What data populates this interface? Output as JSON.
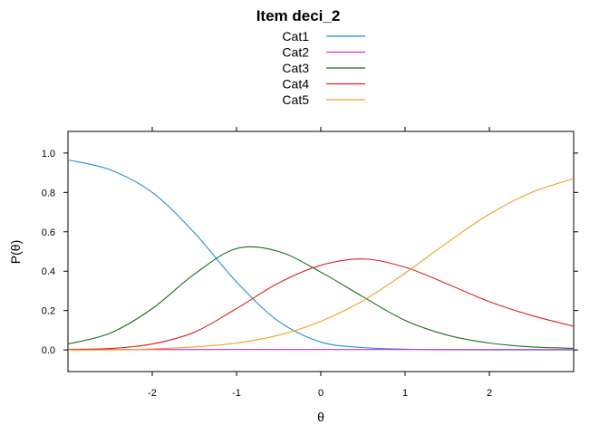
{
  "chart_data": {
    "type": "line",
    "title": "Item deci_2",
    "xlabel": "θ",
    "ylabel": "P(θ)",
    "xlim": [
      -3,
      3
    ],
    "ylim": [
      -0.11,
      1.11
    ],
    "x_ticks": [
      -2,
      -1,
      0,
      1,
      2
    ],
    "x_tick_labels": [
      "-2",
      "-1",
      "0",
      "1",
      "2"
    ],
    "y_ticks": [
      0.0,
      0.2,
      0.4,
      0.6,
      0.8,
      1.0
    ],
    "y_tick_labels": [
      "0.0",
      "0.2",
      "0.4",
      "0.6",
      "0.8",
      "1.0"
    ],
    "grid": false,
    "legend_position": "top-center",
    "x": [
      -3.0,
      -2.5,
      -2.0,
      -1.5,
      -1.0,
      -0.5,
      0.0,
      0.5,
      1.0,
      1.5,
      2.0,
      2.5,
      3.0
    ],
    "series": [
      {
        "name": "Cat1",
        "color": "#1f8fd6",
        "values": [
          0.965,
          0.915,
          0.8,
          0.595,
          0.345,
          0.145,
          0.04,
          0.012,
          0.004,
          0.001,
          0.0,
          0.0,
          0.0
        ]
      },
      {
        "name": "Cat2",
        "color": "#cc33cc",
        "values": [
          0.002,
          0.002,
          0.002,
          0.002,
          0.002,
          0.002,
          0.002,
          0.002,
          0.002,
          0.002,
          0.002,
          0.002,
          0.002
        ]
      },
      {
        "name": "Cat3",
        "color": "#1a6b1a",
        "values": [
          0.03,
          0.085,
          0.21,
          0.385,
          0.515,
          0.5,
          0.395,
          0.27,
          0.15,
          0.075,
          0.035,
          0.015,
          0.008
        ]
      },
      {
        "name": "Cat4",
        "color": "#dd2222",
        "values": [
          0.003,
          0.007,
          0.03,
          0.09,
          0.21,
          0.34,
          0.43,
          0.462,
          0.42,
          0.335,
          0.245,
          0.175,
          0.12
        ]
      },
      {
        "name": "Cat5",
        "color": "#f0a020",
        "values": [
          0.0,
          0.0,
          0.005,
          0.015,
          0.035,
          0.075,
          0.145,
          0.25,
          0.39,
          0.545,
          0.69,
          0.8,
          0.87
        ]
      }
    ]
  }
}
